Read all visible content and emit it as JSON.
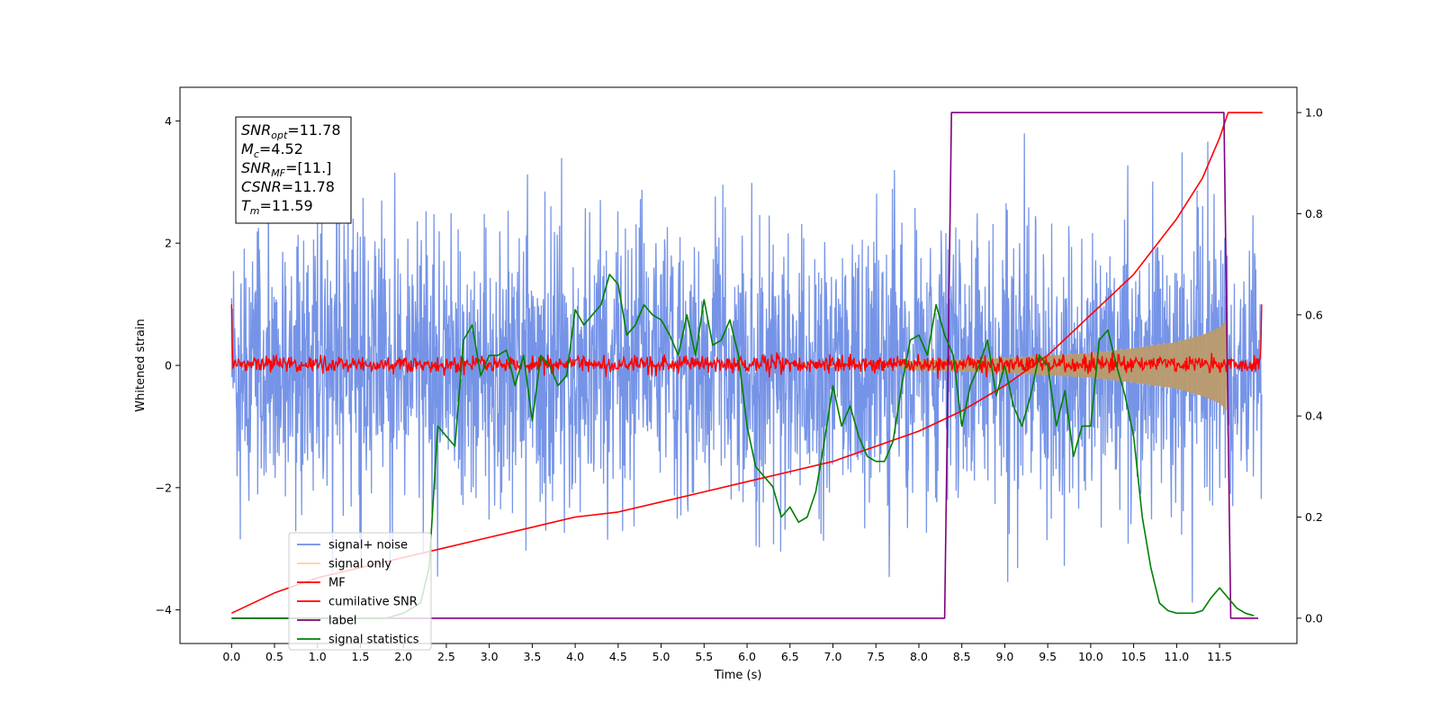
{
  "chart_data": {
    "type": "line",
    "title": "",
    "xlabel": "Time (s)",
    "ylabel": "Whitened strain",
    "y2label": "",
    "xlim": [
      -0.6,
      12.4
    ],
    "ylim": [
      -4.55,
      4.55
    ],
    "y2lim": [
      -0.05,
      1.05
    ],
    "x_ticks": [
      0.0,
      0.5,
      1.0,
      1.5,
      2.0,
      2.5,
      3.0,
      3.5,
      4.0,
      4.5,
      5.0,
      5.5,
      6.0,
      6.5,
      7.0,
      7.5,
      8.0,
      8.5,
      9.0,
      9.5,
      10.0,
      10.5,
      11.0,
      11.5
    ],
    "x_tick_labels": [
      "0.0",
      "0.5",
      "1.0",
      "1.5",
      "2.0",
      "2.5",
      "3.0",
      "3.5",
      "4.0",
      "4.5",
      "5.0",
      "5.5",
      "6.0",
      "6.5",
      "7.0",
      "7.5",
      "8.0",
      "8.5",
      "9.0",
      "9.5",
      "10.0",
      "10.5",
      "11.0",
      "11.5"
    ],
    "y_ticks": [
      -4,
      -2,
      0,
      2,
      4
    ],
    "y_tick_labels": [
      "−4",
      "−2",
      "0",
      "2",
      "4"
    ],
    "y2_ticks": [
      0.0,
      0.2,
      0.4,
      0.6,
      0.8,
      1.0
    ],
    "y2_tick_labels": [
      "0.0",
      "0.2",
      "0.4",
      "0.6",
      "0.8",
      "1.0"
    ],
    "grid": false,
    "legend_position": "lower-left",
    "annotation": [
      {
        "sym": "SNR",
        "sub": "opt",
        "val": "=11.78"
      },
      {
        "sym": "M",
        "sub": "c",
        "val": "=4.52"
      },
      {
        "sym": "SNR",
        "sub": "MF",
        "val": "=[11.]"
      },
      {
        "sym": "CSNR",
        "sub": "",
        "val": "=11.78"
      },
      {
        "sym": "T",
        "sub": "m",
        "val": "=11.59"
      }
    ],
    "series": [
      {
        "name": "signal+ noise",
        "axis": "left",
        "color": "#6f8ee6",
        "description_values": {
          "x_start": 0.0,
          "x_end": 11.99,
          "approx_range": [
            -4.1,
            4.1
          ]
        }
      },
      {
        "name": "signal only",
        "axis": "left",
        "color": "#f5c77e",
        "envelope": {
          "x": [
            8.0,
            9.0,
            10.0,
            10.5,
            11.0,
            11.3,
            11.5,
            11.59
          ],
          "amp": [
            0.08,
            0.12,
            0.2,
            0.28,
            0.38,
            0.5,
            0.62,
            0.75
          ]
        }
      },
      {
        "name": "MF",
        "axis": "left",
        "color": "#ff0000",
        "description_values": {
          "approx_range": [
            -0.15,
            0.3
          ],
          "edge_value": 1.0
        }
      },
      {
        "name": "cumilative SNR",
        "axis": "right",
        "color": "#ff0000",
        "x": [
          0.0,
          0.5,
          1.0,
          1.5,
          2.0,
          2.5,
          3.0,
          3.5,
          4.0,
          4.5,
          5.0,
          5.5,
          6.0,
          6.5,
          7.0,
          7.5,
          8.0,
          8.5,
          9.0,
          9.5,
          10.0,
          10.5,
          11.0,
          11.3,
          11.5,
          11.6,
          12.0
        ],
        "y": [
          0.01,
          0.05,
          0.08,
          0.1,
          0.12,
          0.14,
          0.16,
          0.18,
          0.2,
          0.21,
          0.23,
          0.25,
          0.27,
          0.29,
          0.31,
          0.34,
          0.37,
          0.41,
          0.46,
          0.52,
          0.6,
          0.68,
          0.79,
          0.87,
          0.95,
          1.0,
          1.0
        ]
      },
      {
        "name": "label",
        "axis": "right",
        "color": "#800080",
        "x": [
          0.0,
          8.3,
          8.38,
          11.55,
          11.63,
          11.95
        ],
        "y": [
          0.0,
          0.0,
          1.0,
          1.0,
          0.0,
          0.0
        ]
      },
      {
        "name": "signal statistics",
        "axis": "right",
        "color": "#008000",
        "x": [
          0.0,
          0.5,
          1.0,
          1.5,
          1.8,
          2.0,
          2.2,
          2.3,
          2.4,
          2.5,
          2.6,
          2.7,
          2.8,
          2.9,
          3.0,
          3.1,
          3.2,
          3.3,
          3.4,
          3.5,
          3.6,
          3.7,
          3.8,
          3.9,
          4.0,
          4.1,
          4.2,
          4.3,
          4.4,
          4.5,
          4.6,
          4.7,
          4.8,
          4.9,
          5.0,
          5.1,
          5.2,
          5.3,
          5.4,
          5.5,
          5.6,
          5.7,
          5.8,
          5.9,
          6.0,
          6.1,
          6.2,
          6.3,
          6.4,
          6.5,
          6.6,
          6.7,
          6.8,
          6.9,
          7.0,
          7.1,
          7.2,
          7.3,
          7.4,
          7.5,
          7.6,
          7.7,
          7.8,
          7.9,
          8.0,
          8.1,
          8.2,
          8.3,
          8.4,
          8.5,
          8.6,
          8.7,
          8.8,
          8.9,
          9.0,
          9.1,
          9.2,
          9.3,
          9.4,
          9.5,
          9.6,
          9.7,
          9.8,
          9.9,
          10.0,
          10.1,
          10.2,
          10.3,
          10.4,
          10.5,
          10.6,
          10.7,
          10.8,
          10.9,
          11.0,
          11.1,
          11.2,
          11.3,
          11.4,
          11.5,
          11.6,
          11.7,
          11.8,
          11.9
        ],
        "y": [
          0.0,
          0.0,
          0.0,
          0.0,
          0.0,
          0.01,
          0.03,
          0.1,
          0.38,
          0.36,
          0.34,
          0.55,
          0.58,
          0.48,
          0.52,
          0.52,
          0.53,
          0.46,
          0.52,
          0.39,
          0.52,
          0.5,
          0.46,
          0.48,
          0.61,
          0.58,
          0.6,
          0.62,
          0.68,
          0.66,
          0.56,
          0.58,
          0.62,
          0.6,
          0.59,
          0.56,
          0.52,
          0.6,
          0.52,
          0.63,
          0.54,
          0.55,
          0.59,
          0.52,
          0.38,
          0.3,
          0.28,
          0.26,
          0.2,
          0.22,
          0.19,
          0.2,
          0.25,
          0.35,
          0.46,
          0.38,
          0.42,
          0.36,
          0.32,
          0.31,
          0.31,
          0.35,
          0.46,
          0.55,
          0.56,
          0.52,
          0.62,
          0.56,
          0.52,
          0.38,
          0.46,
          0.5,
          0.55,
          0.44,
          0.5,
          0.42,
          0.38,
          0.44,
          0.52,
          0.5,
          0.38,
          0.45,
          0.32,
          0.38,
          0.38,
          0.55,
          0.57,
          0.5,
          0.44,
          0.36,
          0.2,
          0.1,
          0.03,
          0.015,
          0.01,
          0.01,
          0.01,
          0.015,
          0.04,
          0.06,
          0.04,
          0.02,
          0.01,
          0.005
        ]
      }
    ]
  }
}
